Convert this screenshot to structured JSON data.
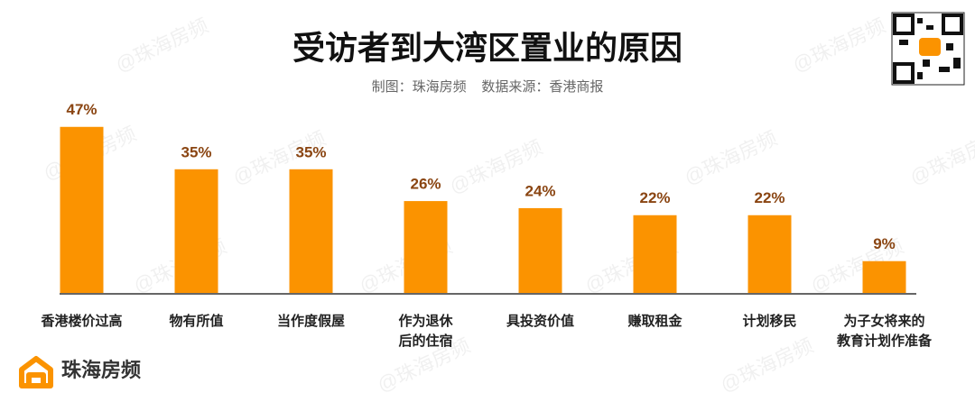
{
  "chart_data": {
    "type": "bar",
    "title": "受访者到大湾区置业的原因",
    "subtitle": "制图：珠海房频    数据来源：香港商报",
    "categories": [
      "香港楼价过高",
      "物有所值",
      "当作度假屋",
      "作为退休\n后的住宿",
      "具投资价值",
      "赚取租金",
      "计划移民",
      "为子女将来的\n教育计划作准备"
    ],
    "values": [
      47,
      35,
      35,
      26,
      24,
      22,
      22,
      9
    ],
    "value_labels": [
      "47%",
      "35%",
      "35%",
      "26%",
      "24%",
      "22%",
      "22%",
      "9%"
    ],
    "color": "#fb9300",
    "label_color": "#8a4512",
    "logo_text": "珠海房频",
    "watermark": "@珠海房频"
  }
}
